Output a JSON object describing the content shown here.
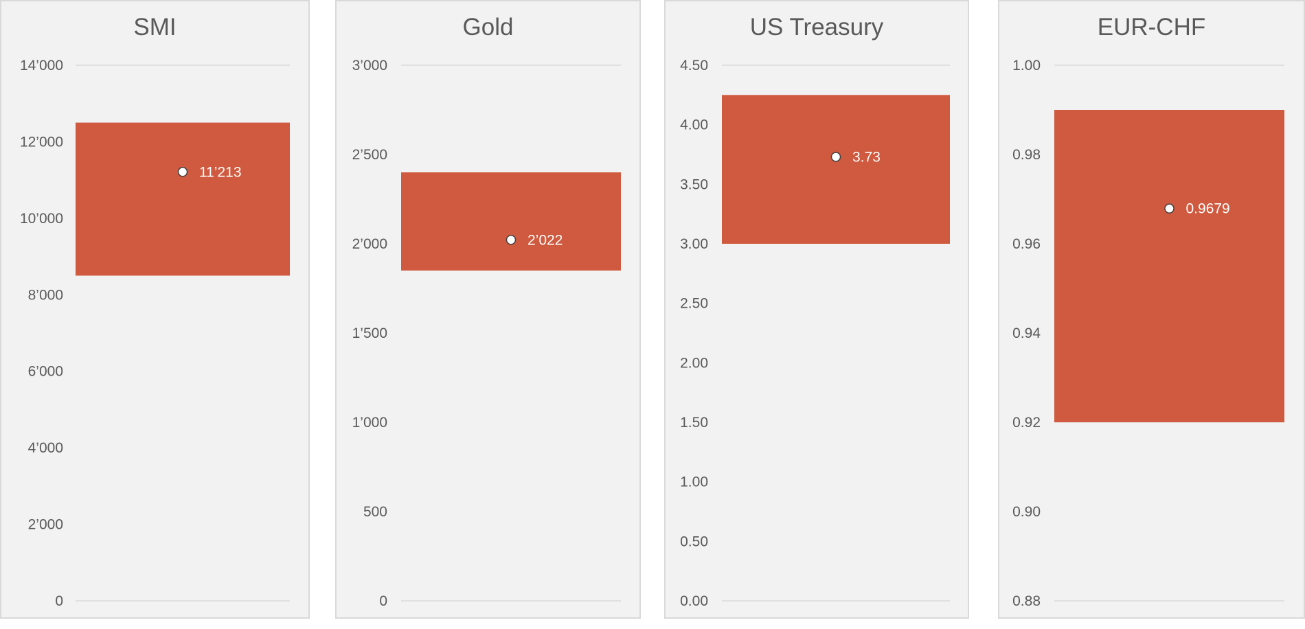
{
  "colors": {
    "bar": "#CF5A3F",
    "background": "#F2F2F2",
    "border": "#D9D9D9",
    "text": "#595959",
    "grid": "#D9D9D9"
  },
  "chart_data": [
    {
      "type": "bar",
      "title": "SMI",
      "ylim": [
        0,
        14000
      ],
      "ticks": [
        0,
        2000,
        4000,
        6000,
        8000,
        10000,
        12000,
        14000
      ],
      "tick_labels": [
        "0",
        "2’000",
        "4’000",
        "6’000",
        "8’000",
        "10’000",
        "12’000",
        "14’000"
      ],
      "range": [
        8500,
        12500
      ],
      "value": 11213,
      "value_label": "11’213"
    },
    {
      "type": "bar",
      "title": "Gold",
      "ylim": [
        0,
        3000
      ],
      "ticks": [
        0,
        500,
        1000,
        1500,
        2000,
        2500,
        3000
      ],
      "tick_labels": [
        "0",
        "500",
        "1’000",
        "1’500",
        "2’000",
        "2’500",
        "3’000"
      ],
      "range": [
        1850,
        2400
      ],
      "value": 2022,
      "value_label": "2’022"
    },
    {
      "type": "bar",
      "title": "US Treasury",
      "ylim": [
        0,
        4.5
      ],
      "ticks": [
        0,
        0.5,
        1,
        1.5,
        2,
        2.5,
        3,
        3.5,
        4,
        4.5
      ],
      "tick_labels": [
        "0.00",
        "0.50",
        "1.00",
        "1.50",
        "2.00",
        "2.50",
        "3.00",
        "3.50",
        "4.00",
        "4.50"
      ],
      "range": [
        3.0,
        4.25
      ],
      "value": 3.73,
      "value_label": "3.73"
    },
    {
      "type": "bar",
      "title": "EUR-CHF",
      "ylim": [
        0.88,
        1.0
      ],
      "ticks": [
        0.88,
        0.9,
        0.92,
        0.94,
        0.96,
        0.98,
        1.0
      ],
      "tick_labels": [
        "0.88",
        "0.90",
        "0.92",
        "0.94",
        "0.96",
        "0.98",
        "1.00"
      ],
      "range": [
        0.92,
        0.99
      ],
      "value": 0.9679,
      "value_label": "0.9679"
    }
  ]
}
